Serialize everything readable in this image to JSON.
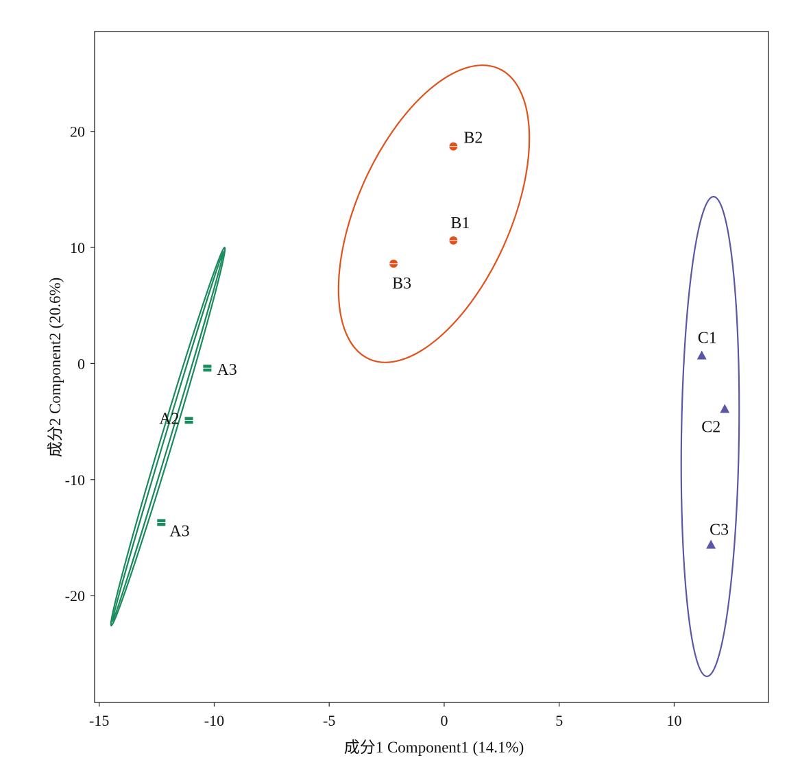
{
  "chart_data": {
    "type": "scatter",
    "title": "",
    "xlabel": "成分1 Component1 (14.1%)",
    "ylabel": "成分2 Component2 (20.6%)",
    "xlim": [
      -15.2,
      14.1
    ],
    "ylim": [
      -29.2,
      28.6
    ],
    "x_ticks": [
      -15,
      -10,
      -5,
      0,
      5,
      10
    ],
    "y_ticks": [
      -20,
      -10,
      0,
      10,
      20
    ],
    "x_tick_labels": [
      "-15",
      "-10",
      "-5",
      "0",
      "5",
      "10"
    ],
    "y_tick_labels": [
      "-20",
      "-10",
      "0",
      "10",
      "20"
    ],
    "grid": false,
    "series": [
      {
        "color": "#1a8a5e",
        "marker": "square",
        "points": [
          {
            "x": -10.3,
            "y": -0.4,
            "label": "A3"
          },
          {
            "x": -11.1,
            "y": -4.9,
            "label": "A2"
          },
          {
            "x": -12.3,
            "y": -13.7,
            "label": "A3"
          }
        ],
        "ellipse_double": true
      },
      {
        "color": "#e0521c",
        "marker": "circle",
        "points": [
          {
            "x": 0.4,
            "y": 18.7,
            "label": "B2"
          },
          {
            "x": 0.4,
            "y": 10.6,
            "label": "B1"
          },
          {
            "x": -2.2,
            "y": 8.6,
            "label": "B3"
          }
        ],
        "ellipse_double": false
      },
      {
        "color": "#5b57a6",
        "marker": "triangle",
        "points": [
          {
            "x": 11.2,
            "y": 0.7,
            "label": "C1"
          },
          {
            "x": 12.2,
            "y": -3.9,
            "label": "C2"
          },
          {
            "x": 11.6,
            "y": -15.6,
            "label": "C3"
          }
        ],
        "ellipse_double": false
      }
    ]
  }
}
